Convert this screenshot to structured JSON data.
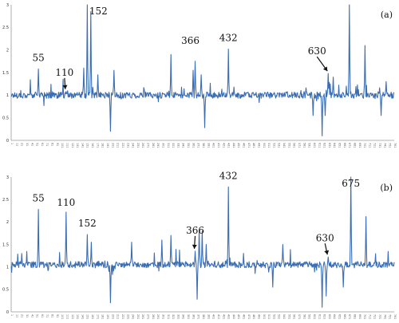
{
  "chart_data": [
    {
      "type": "line",
      "panel_label": "(a)",
      "x_range": [
        1,
        761
      ],
      "ylim": [
        0,
        3
      ],
      "yticks": [
        0,
        0.5,
        1,
        1.5,
        2,
        2.5,
        3
      ],
      "baseline": 1.0,
      "peaks": [
        {
          "x": 55,
          "y": 1.58
        },
        {
          "x": 110,
          "y": 1.08
        },
        {
          "x": 152,
          "y": 3.0
        },
        {
          "x": 366,
          "y": 1.75
        },
        {
          "x": 432,
          "y": 2.02
        },
        {
          "x": 630,
          "y": 1.48
        }
      ],
      "extra_spikes": [
        {
          "x": 145,
          "y": 1.6
        },
        {
          "x": 159,
          "y": 2.85
        },
        {
          "x": 173,
          "y": 1.45
        },
        {
          "x": 205,
          "y": 1.55
        },
        {
          "x": 318,
          "y": 1.9
        },
        {
          "x": 362,
          "y": 1.55
        },
        {
          "x": 378,
          "y": 1.45
        },
        {
          "x": 640,
          "y": 1.4
        },
        {
          "x": 672,
          "y": 3.0
        },
        {
          "x": 703,
          "y": 2.1
        },
        {
          "x": 745,
          "y": 1.3
        }
      ],
      "dips": [
        {
          "x": 198,
          "y": 0.2
        },
        {
          "x": 385,
          "y": 0.28
        },
        {
          "x": 600,
          "y": 0.55
        },
        {
          "x": 618,
          "y": 0.1
        },
        {
          "x": 624,
          "y": 0.55
        },
        {
          "x": 735,
          "y": 0.55
        }
      ],
      "annotations": [
        {
          "text": "55",
          "x": 55,
          "y": 1.58
        },
        {
          "text": "110",
          "x": 110,
          "y": 1.08,
          "arrow": true
        },
        {
          "text": "152",
          "x": 152,
          "y": 3.0
        },
        {
          "text": "366",
          "x": 366,
          "y": 1.75
        },
        {
          "text": "432",
          "x": 432,
          "y": 2.02
        },
        {
          "text": "630",
          "x": 630,
          "y": 1.48,
          "arrow": true
        }
      ]
    },
    {
      "type": "line",
      "panel_label": "(b)",
      "x_range": [
        1,
        761
      ],
      "ylim": [
        0,
        3
      ],
      "yticks": [
        0,
        0.5,
        1,
        1.5,
        2,
        2.5,
        3
      ],
      "baseline": 1.05,
      "peaks": [
        {
          "x": 55,
          "y": 2.28
        },
        {
          "x": 110,
          "y": 2.22
        },
        {
          "x": 152,
          "y": 1.72
        },
        {
          "x": 366,
          "y": 1.35
        },
        {
          "x": 432,
          "y": 2.78
        },
        {
          "x": 630,
          "y": 1.22
        },
        {
          "x": 675,
          "y": 3.0
        }
      ],
      "extra_spikes": [
        {
          "x": 160,
          "y": 1.55
        },
        {
          "x": 240,
          "y": 1.55
        },
        {
          "x": 300,
          "y": 1.6
        },
        {
          "x": 318,
          "y": 1.7
        },
        {
          "x": 374,
          "y": 1.8
        },
        {
          "x": 380,
          "y": 1.8
        },
        {
          "x": 388,
          "y": 1.5
        },
        {
          "x": 540,
          "y": 1.5
        },
        {
          "x": 705,
          "y": 2.12
        }
      ],
      "dips": [
        {
          "x": 198,
          "y": 0.2
        },
        {
          "x": 370,
          "y": 0.28
        },
        {
          "x": 520,
          "y": 0.55
        },
        {
          "x": 618,
          "y": 0.1
        },
        {
          "x": 626,
          "y": 0.35
        },
        {
          "x": 660,
          "y": 0.55
        }
      ],
      "annotations": [
        {
          "text": "55",
          "x": 55,
          "y": 2.28
        },
        {
          "text": "110",
          "x": 110,
          "y": 2.22
        },
        {
          "text": "152",
          "x": 152,
          "y": 1.72
        },
        {
          "text": "366",
          "x": 366,
          "y": 1.35,
          "arrow": true
        },
        {
          "text": "432",
          "x": 432,
          "y": 2.78
        },
        {
          "text": "630",
          "x": 630,
          "y": 1.22,
          "arrow": true
        },
        {
          "text": "675",
          "x": 675,
          "y": 3.0
        }
      ]
    }
  ]
}
